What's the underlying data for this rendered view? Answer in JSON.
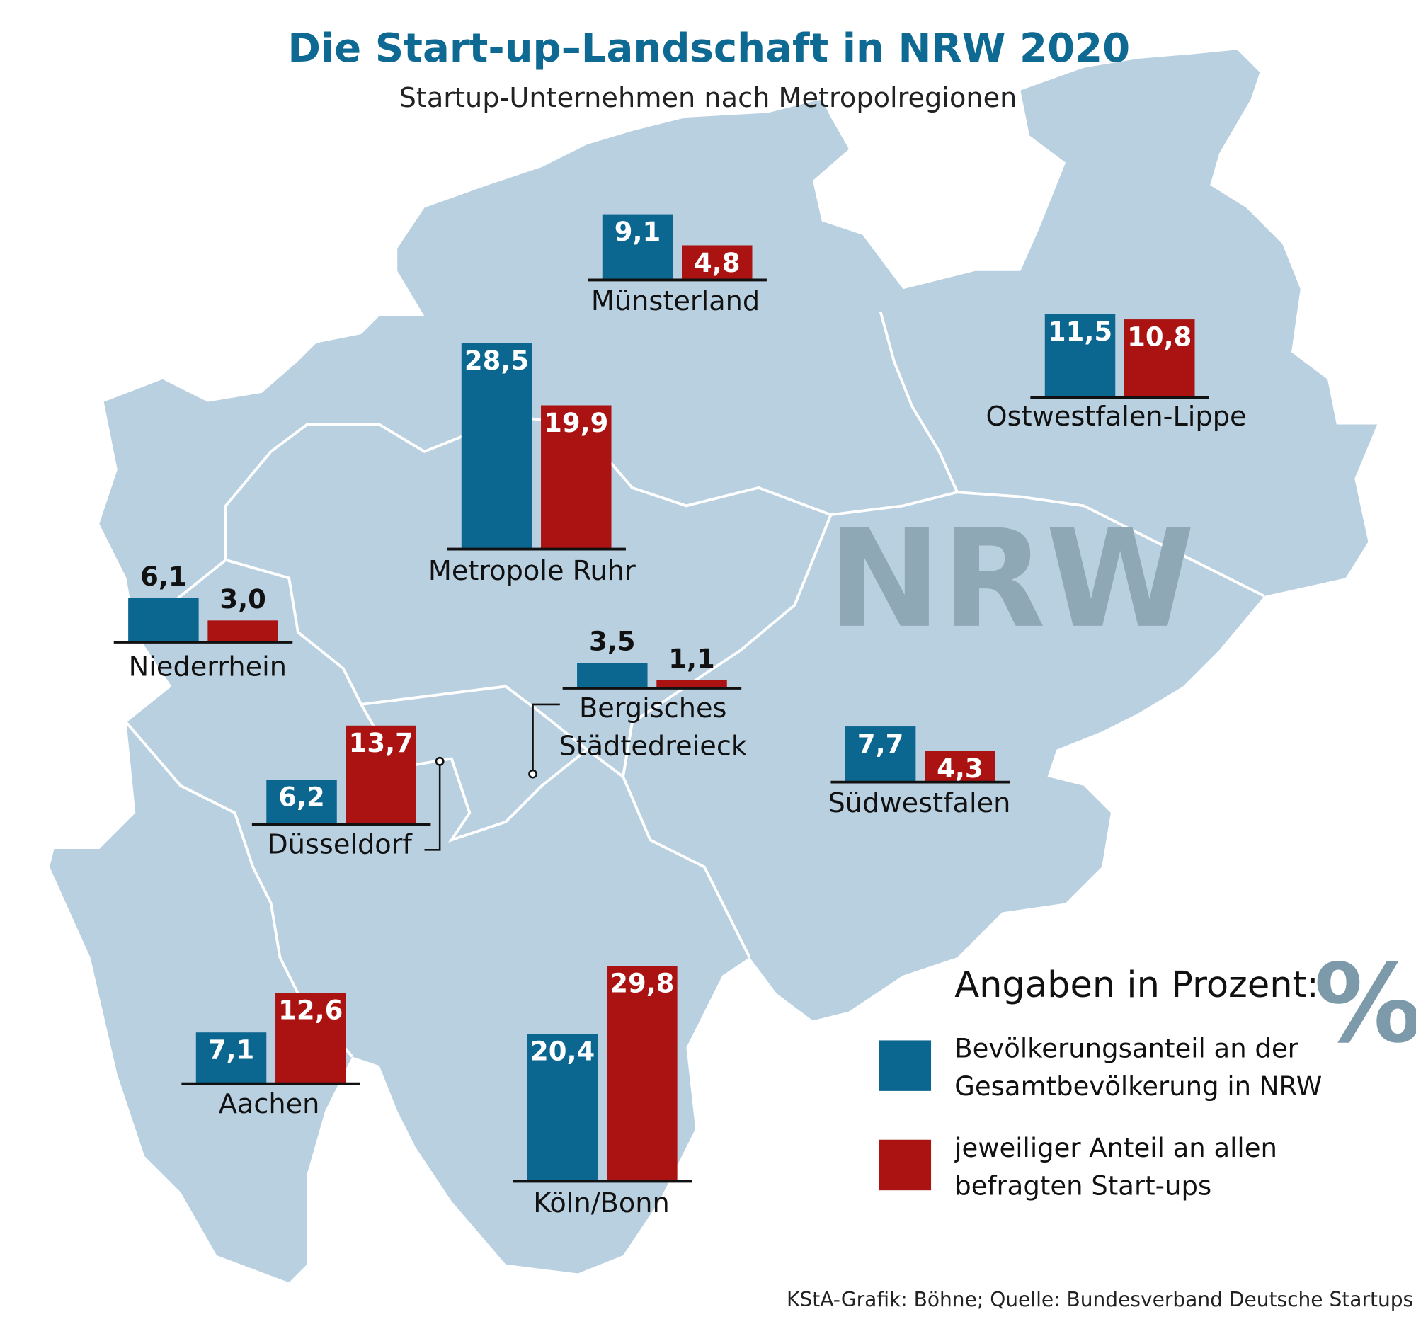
{
  "chart_data": {
    "type": "bar",
    "title": "Die Start-up–Landschaft in NRW 2020",
    "subtitle": "Startup-Unternehmen nach Metropolregionen",
    "map_label": "NRW",
    "legend_title": "Angaben in Prozent:",
    "unit_symbol": "%",
    "source": "KStA-Grafik: Böhne; Quelle: Bundesverband Deutsche Startups",
    "categories": [
      "Münsterland",
      "Ostwestfalen-Lippe",
      "Metropole Ruhr",
      "Niederrhein",
      "Bergisches Städtedreieck",
      "Düsseldorf",
      "Südwestfalen",
      "Aachen",
      "Köln/Bonn"
    ],
    "series": [
      {
        "name": "Bevölkerungsanteil an der Gesamtbevölkerung in NRW",
        "color": "#0b6690",
        "values": [
          9.1,
          11.5,
          28.5,
          6.1,
          3.5,
          6.2,
          7.7,
          7.1,
          20.4
        ],
        "value_labels": [
          "9,1",
          "11,5",
          "28,5",
          "6,1",
          "3,5",
          "6,2",
          "7,7",
          "7,1",
          "20,4"
        ]
      },
      {
        "name": "jeweiliger Anteil an allen befragten Start-ups",
        "color": "#ab1212",
        "values": [
          4.8,
          10.8,
          19.9,
          3.0,
          1.1,
          13.7,
          4.3,
          12.6,
          29.8
        ],
        "value_labels": [
          "4,8",
          "10,8",
          "19,9",
          "3,0",
          "1,1",
          "13,7",
          "4,3",
          "12,6",
          "29,8"
        ]
      }
    ]
  }
}
